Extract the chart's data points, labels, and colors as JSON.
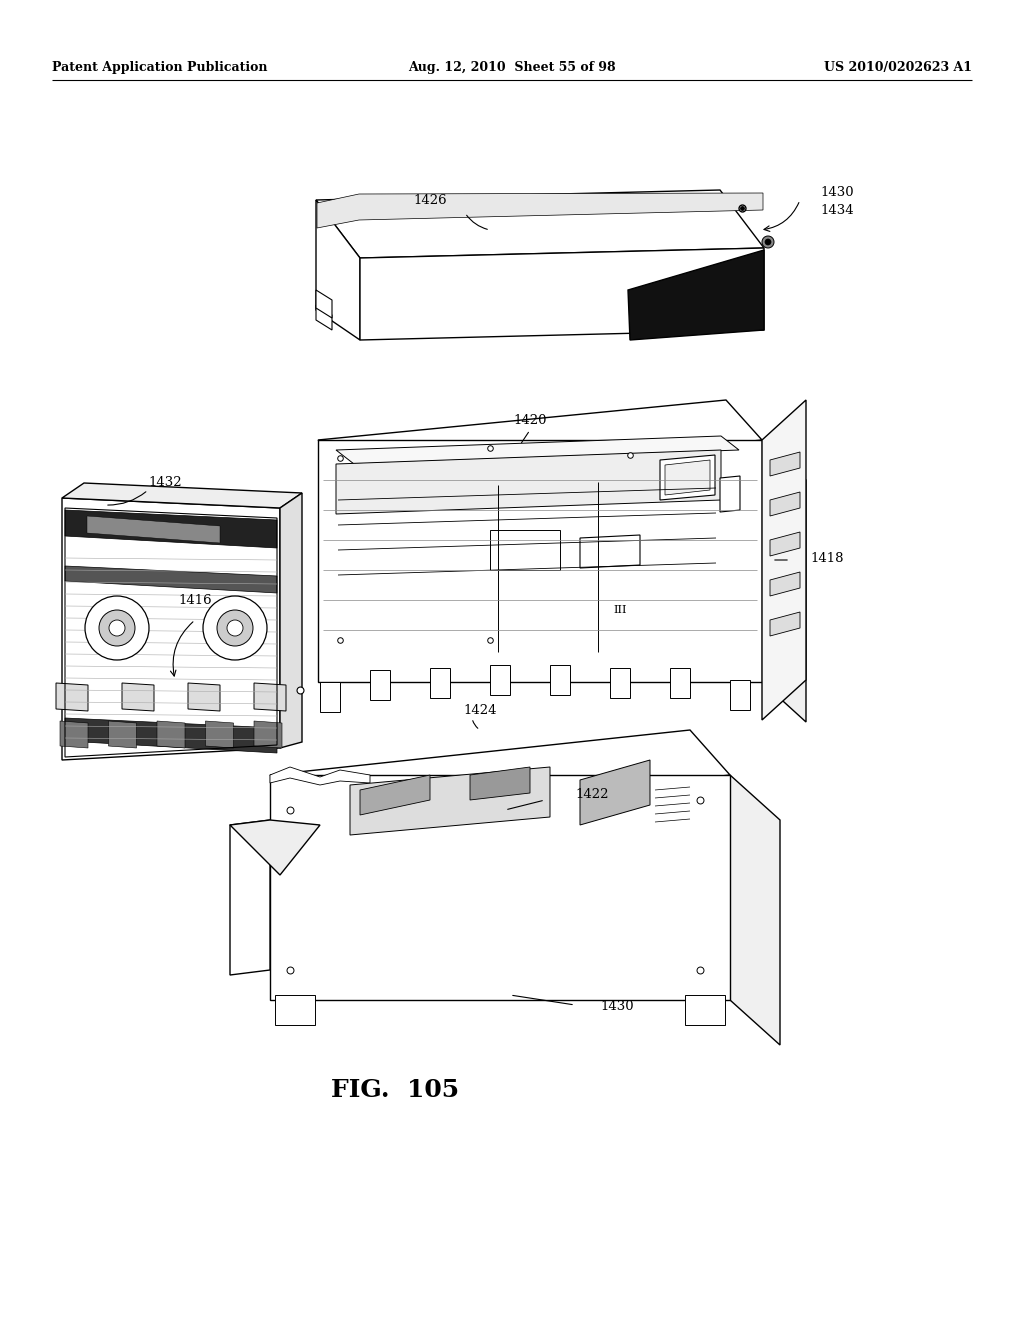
{
  "header_left": "Patent Application Publication",
  "header_mid": "Aug. 12, 2010  Sheet 55 of 98",
  "header_right": "US 2010/0202623 A1",
  "figure_label": "FIG.  105",
  "background_color": "#ffffff",
  "line_color": "#000000",
  "lw": 1.0,
  "label_fontsize": 9.5,
  "fig_label_fontsize": 18
}
